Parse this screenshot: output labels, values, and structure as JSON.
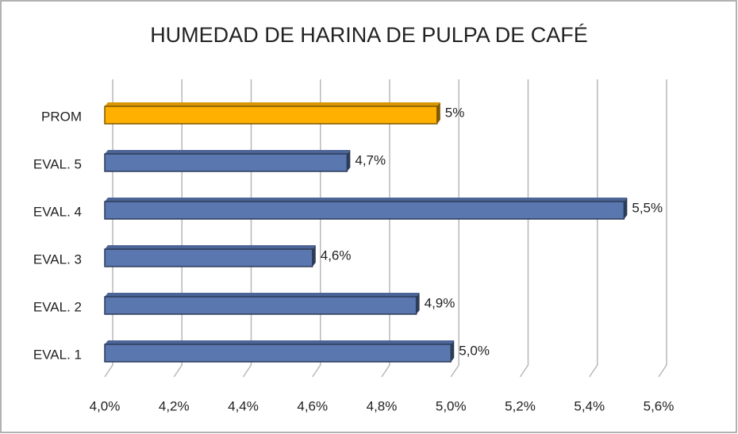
{
  "chart_data": {
    "type": "bar",
    "orientation": "horizontal",
    "title": "HUMEDAD DE HARINA DE PULPA DE CAFÉ",
    "categories": [
      "EVAL. 1",
      "EVAL. 2",
      "EVAL. 3",
      "EVAL. 4",
      "EVAL. 5",
      "PROM"
    ],
    "values": [
      5.0,
      4.9,
      4.6,
      5.5,
      4.7,
      4.96
    ],
    "value_labels": [
      "5,0%",
      "4,9%",
      "4,6%",
      "5,5%",
      "4,7%",
      "5%"
    ],
    "colors": [
      "#5a77b0",
      "#5a77b0",
      "#5a77b0",
      "#5a77b0",
      "#5a77b0",
      "#ffb000"
    ],
    "xlim": [
      4.0,
      5.6
    ],
    "xticks": [
      {
        "value": 4.0,
        "label": "4,0%"
      },
      {
        "value": 4.2,
        "label": "4,2%"
      },
      {
        "value": 4.4,
        "label": "4,4%"
      },
      {
        "value": 4.6,
        "label": "4,6%"
      },
      {
        "value": 4.8,
        "label": "4,8%"
      },
      {
        "value": 5.0,
        "label": "5,0%"
      },
      {
        "value": 5.2,
        "label": "5,2%"
      },
      {
        "value": 5.4,
        "label": "5,4%"
      },
      {
        "value": 5.6,
        "label": "5,6%"
      }
    ],
    "grid": true
  }
}
